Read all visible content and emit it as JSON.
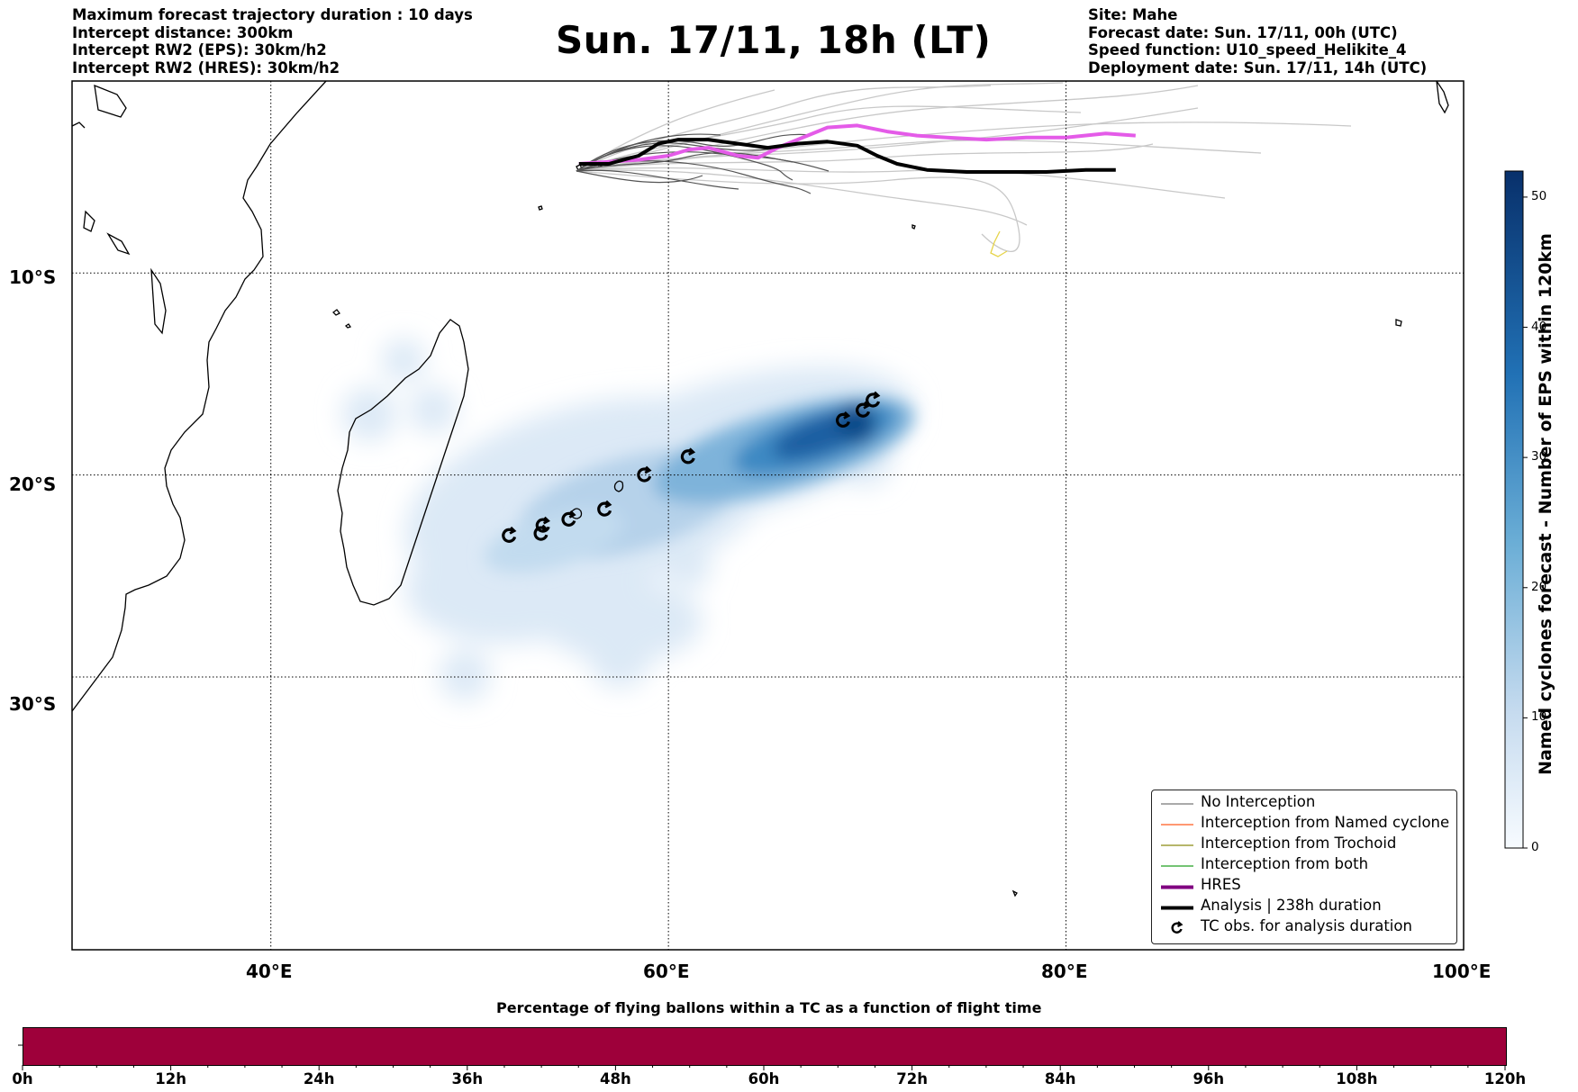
{
  "header_left": [
    "Maximum forecast trajectory duration : 10 days",
    "Intercept distance: 300km",
    "Intercept RW2 (EPS):  30km/h2",
    "Intercept RW2 (HRES): 30km/h2"
  ],
  "title": "Sun. 17/11, 18h (LT)",
  "header_right": [
    "Site: Mahe",
    "Forecast date: Sun. 17/11, 00h (UTC)",
    "Speed function: U10_speed_Helikite_4",
    "Deployment date: Sun. 17/11, 14h (UTC)"
  ],
  "map": {
    "lat_labels": [
      "10°S",
      "20°S",
      "30°S"
    ],
    "lon_labels": [
      "40°E",
      "60°E",
      "80°E",
      "100°E"
    ],
    "gridlines": "dotted",
    "extent": {
      "lon": [
        30,
        100
      ],
      "lat": [
        -43.5,
        -0.5
      ]
    }
  },
  "chart_data": {
    "type": "map",
    "gridlines": {
      "lon": [
        40,
        60,
        80,
        100
      ],
      "lat": [
        -10,
        -20,
        -30
      ]
    },
    "hres_track": [
      [
        55.5,
        -4.6
      ],
      [
        57,
        -4.5
      ],
      [
        58.5,
        -4.4
      ],
      [
        60,
        -4.2
      ],
      [
        61,
        -3.9
      ],
      [
        62,
        -3.8
      ],
      [
        63.5,
        -4.2
      ],
      [
        64.5,
        -4.3
      ],
      [
        65.5,
        -3.8
      ],
      [
        67,
        -3.2
      ],
      [
        68,
        -2.8
      ],
      [
        69.5,
        -2.7
      ],
      [
        71,
        -3.0
      ],
      [
        72.5,
        -3.2
      ],
      [
        74,
        -3.3
      ],
      [
        76,
        -3.4
      ],
      [
        78,
        -3.3
      ],
      [
        80,
        -3.3
      ],
      [
        82,
        -3.1
      ],
      [
        83.5,
        -3.2
      ]
    ],
    "analysis_track": [
      [
        55.5,
        -4.6
      ],
      [
        57,
        -4.6
      ],
      [
        58.5,
        -4.2
      ],
      [
        59.5,
        -3.6
      ],
      [
        60.5,
        -3.4
      ],
      [
        62,
        -3.4
      ],
      [
        63.5,
        -3.6
      ],
      [
        65,
        -3.8
      ],
      [
        66.5,
        -3.6
      ],
      [
        68,
        -3.5
      ],
      [
        69.5,
        -3.7
      ],
      [
        70.5,
        -4.2
      ],
      [
        71.5,
        -4.6
      ],
      [
        73,
        -4.9
      ],
      [
        75,
        -5.0
      ],
      [
        77,
        -5.0
      ],
      [
        79,
        -5.0
      ],
      [
        81,
        -4.9
      ],
      [
        82.5,
        -4.9
      ]
    ],
    "tc_obs": [
      [
        52,
        -23.0
      ],
      [
        53.6,
        -22.9
      ],
      [
        53.7,
        -22.5
      ],
      [
        55,
        -22.2
      ],
      [
        56.8,
        -21.7
      ],
      [
        58.8,
        -20.0
      ],
      [
        61,
        -19.1
      ],
      [
        68.8,
        -17.3
      ],
      [
        69.8,
        -16.8
      ],
      [
        70.3,
        -16.3
      ]
    ],
    "legend": [
      {
        "label": "No Interception",
        "color": "#777777"
      },
      {
        "label": "Interception from Named cyclone",
        "color": "#ff5a1f"
      },
      {
        "label": "Interception from Trochoid",
        "color": "#8a8a12"
      },
      {
        "label": "Interception from both",
        "color": "#20a020"
      },
      {
        "label": "HRES",
        "color": "#800080"
      },
      {
        "label": "Analysis | 238h duration",
        "color": "#000000"
      },
      {
        "label": "TC obs. for analysis duration",
        "symbol": "cyclone-icon"
      }
    ],
    "colorbar": {
      "label": "Named cyclones forecast - Number of EPS within 120km",
      "range": [
        0,
        52
      ],
      "ticks": [
        "0",
        "10",
        "20",
        "30",
        "40",
        "50"
      ],
      "colormap": "Blues"
    },
    "timeline": {
      "title": "Percentage of flying ballons within a TC as a function of flight time",
      "ticks": [
        "0h",
        "12h",
        "24h",
        "36h",
        "48h",
        "60h",
        "72h",
        "84h",
        "96h",
        "108h",
        "120h"
      ],
      "fill_color": "#9e003a"
    }
  }
}
